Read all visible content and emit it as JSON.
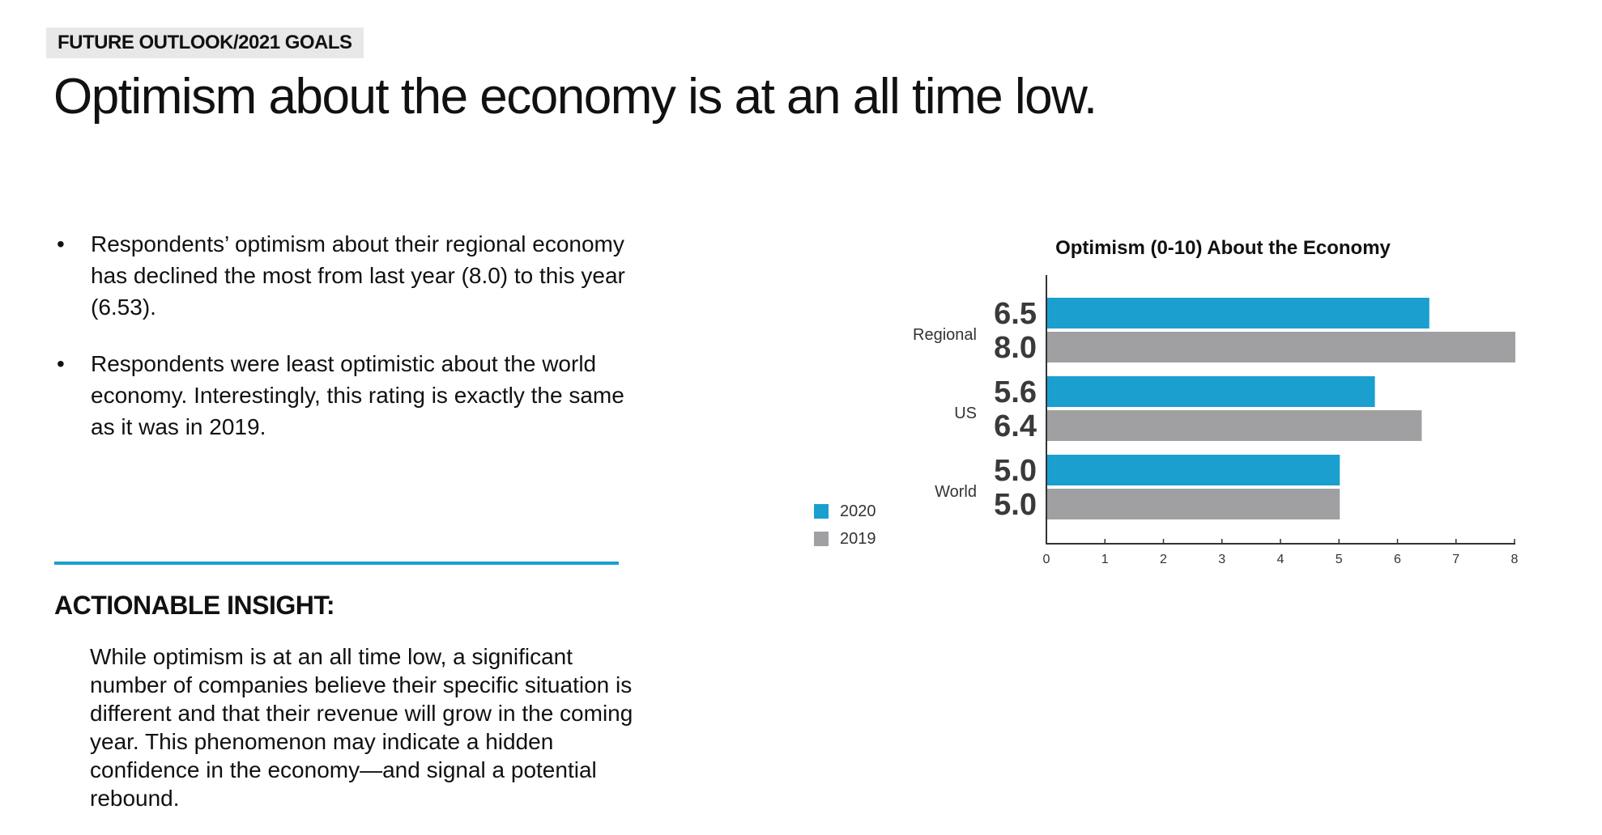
{
  "header": {
    "section_tag": "FUTURE OUTLOOK/2021 GOALS",
    "headline": "Optimism about the economy is at an all time low."
  },
  "bullets": [
    "Respondents’ optimism about their regional economy has declined the most from last year (8.0) to this year (6.53).",
    "Respondents were least optimistic about the world economy. Interestingly, this rating is exactly the same as it was in 2019."
  ],
  "insight": {
    "heading": "ACTIONABLE INSIGHT:",
    "body": "While optimism is at an all time low, a significant number of companies believe their specific situation is different and that their revenue will grow in the coming year. This phenomenon may indicate a hidden confidence in the economy—and signal a potential rebound."
  },
  "colors": {
    "accent": "#1a9fcf",
    "series_2020": "#1a9fcf",
    "series_2019": "#a0a0a2"
  },
  "chart_data": {
    "type": "bar",
    "orientation": "horizontal",
    "title": "Optimism (0-10) About the Economy",
    "xlabel": "",
    "ylabel": "",
    "categories": [
      "Regional",
      "US",
      "World"
    ],
    "series": [
      {
        "name": "2020",
        "values": [
          6.53,
          5.6,
          5.0
        ],
        "labels": [
          "6.5",
          "5.6",
          "5.0"
        ],
        "color": "#1a9fcf"
      },
      {
        "name": "2019",
        "values": [
          8.0,
          6.4,
          5.0
        ],
        "labels": [
          "8.0",
          "6.4",
          "5.0"
        ],
        "color": "#a0a0a2"
      }
    ],
    "xlim": [
      0,
      8
    ],
    "xticks": [
      "0",
      "1",
      "2",
      "3",
      "4",
      "5",
      "6",
      "7",
      "8"
    ],
    "grid": false,
    "legend": "left"
  }
}
